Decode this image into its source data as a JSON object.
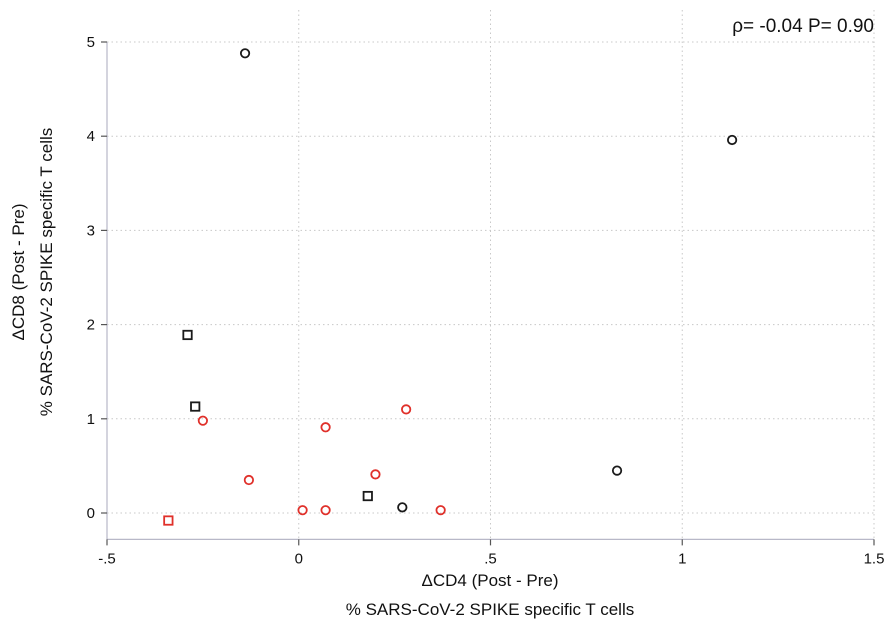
{
  "chart_data": {
    "type": "scatter",
    "annotation": "ρ= -0.04  P=  0.90",
    "xlabel_line1": "ΔCD4 (Post - Pre)",
    "xlabel_line2": "% SARS-CoV-2 SPIKE specific T cells",
    "ylabel_line1": "ΔCD8 (Post - Pre)",
    "ylabel_line2": "% SARS-CoV-2 SPIKE specific T cells",
    "xlim": [
      -0.5,
      1.5
    ],
    "ylim": [
      -0.28,
      5.0
    ],
    "x_ticks": [
      {
        "value": -0.5,
        "label": "-.5"
      },
      {
        "value": 0,
        "label": "0"
      },
      {
        "value": 0.5,
        "label": ".5"
      },
      {
        "value": 1,
        "label": "1"
      },
      {
        "value": 1.5,
        "label": "1.5"
      }
    ],
    "y_ticks": [
      {
        "value": 0,
        "label": "0"
      },
      {
        "value": 1,
        "label": "1"
      },
      {
        "value": 2,
        "label": "2"
      },
      {
        "value": 3,
        "label": "3"
      },
      {
        "value": 4,
        "label": "4"
      },
      {
        "value": 5,
        "label": "5"
      }
    ],
    "grid": true,
    "colors": {
      "black": "#1a1a1a",
      "red": "#e0302a"
    },
    "series": [
      {
        "marker": "circle",
        "color": "black",
        "points": [
          {
            "x": -0.14,
            "y": 4.88
          },
          {
            "x": 1.13,
            "y": 3.96
          },
          {
            "x": 0.83,
            "y": 0.45
          },
          {
            "x": 0.27,
            "y": 0.06
          }
        ]
      },
      {
        "marker": "square",
        "color": "black",
        "points": [
          {
            "x": -0.29,
            "y": 1.89
          },
          {
            "x": -0.27,
            "y": 1.13
          },
          {
            "x": 0.18,
            "y": 0.18
          }
        ]
      },
      {
        "marker": "circle",
        "color": "red",
        "points": [
          {
            "x": -0.25,
            "y": 0.98
          },
          {
            "x": -0.13,
            "y": 0.35
          },
          {
            "x": 0.01,
            "y": 0.03
          },
          {
            "x": 0.07,
            "y": 0.91
          },
          {
            "x": 0.07,
            "y": 0.03
          },
          {
            "x": 0.2,
            "y": 0.41
          },
          {
            "x": 0.28,
            "y": 1.1
          },
          {
            "x": 0.37,
            "y": 0.03
          }
        ]
      },
      {
        "marker": "square",
        "color": "red",
        "points": [
          {
            "x": -0.34,
            "y": -0.08
          }
        ]
      }
    ]
  }
}
